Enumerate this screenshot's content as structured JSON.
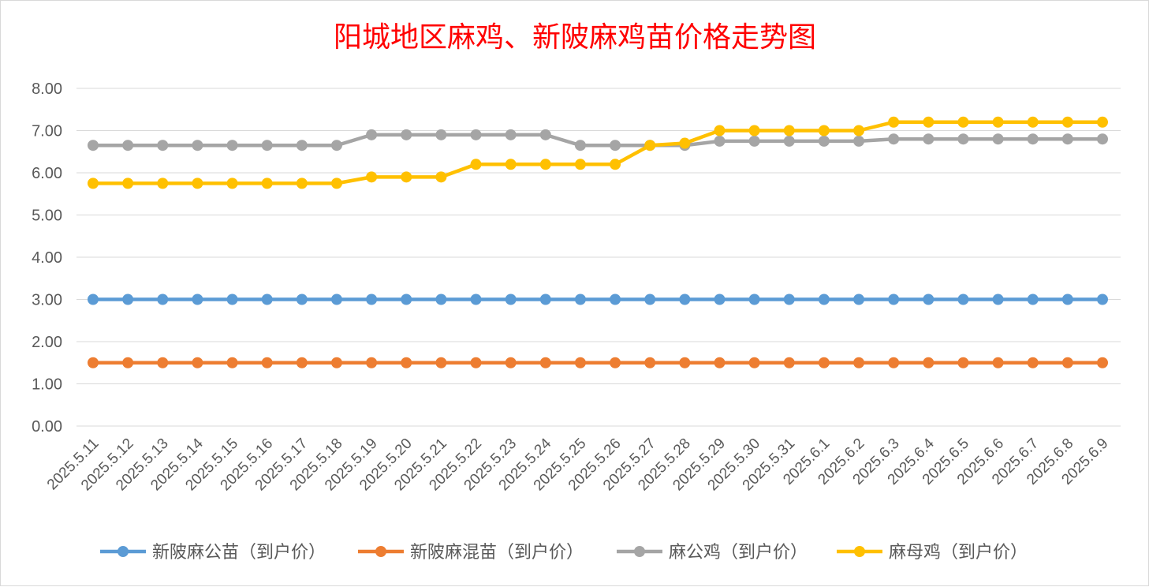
{
  "chart_data": {
    "type": "line",
    "title": "阳城地区麻鸡、新陂麻鸡苗价格走势图",
    "xlabel": "",
    "ylabel": "",
    "ylim": [
      0,
      8
    ],
    "y_ticks": [
      "0.00",
      "1.00",
      "2.00",
      "3.00",
      "4.00",
      "5.00",
      "6.00",
      "7.00",
      "8.00"
    ],
    "grid": true,
    "legend_position": "bottom",
    "categories": [
      "2025.5.11",
      "2025.5.12",
      "2025.5.13",
      "2025.5.14",
      "2025.5.15",
      "2025.5.16",
      "2025.5.17",
      "2025.5.18",
      "2025.5.19",
      "2025.5.20",
      "2025.5.21",
      "2025.5.22",
      "2025.5.23",
      "2025.5.24",
      "2025.5.25",
      "2025.5.26",
      "2025.5.27",
      "2025.5.28",
      "2025.5.29",
      "2025.5.30",
      "2025.5.31",
      "2025.6.1",
      "2025.6.2",
      "2025.6.3",
      "2025.6.4",
      "2025.6.5",
      "2025.6.6",
      "2025.6.7",
      "2025.6.8",
      "2025.6.9"
    ],
    "series": [
      {
        "name": "新陂麻公苗（到户价）",
        "color": "#5b9bd5",
        "values": [
          3.0,
          3.0,
          3.0,
          3.0,
          3.0,
          3.0,
          3.0,
          3.0,
          3.0,
          3.0,
          3.0,
          3.0,
          3.0,
          3.0,
          3.0,
          3.0,
          3.0,
          3.0,
          3.0,
          3.0,
          3.0,
          3.0,
          3.0,
          3.0,
          3.0,
          3.0,
          3.0,
          3.0,
          3.0,
          3.0
        ]
      },
      {
        "name": "新陂麻混苗（到户价）",
        "color": "#ed7d31",
        "values": [
          1.5,
          1.5,
          1.5,
          1.5,
          1.5,
          1.5,
          1.5,
          1.5,
          1.5,
          1.5,
          1.5,
          1.5,
          1.5,
          1.5,
          1.5,
          1.5,
          1.5,
          1.5,
          1.5,
          1.5,
          1.5,
          1.5,
          1.5,
          1.5,
          1.5,
          1.5,
          1.5,
          1.5,
          1.5,
          1.5
        ]
      },
      {
        "name": "麻公鸡（到户价）",
        "color": "#a5a5a5",
        "values": [
          6.65,
          6.65,
          6.65,
          6.65,
          6.65,
          6.65,
          6.65,
          6.65,
          6.9,
          6.9,
          6.9,
          6.9,
          6.9,
          6.9,
          6.65,
          6.65,
          6.65,
          6.65,
          6.75,
          6.75,
          6.75,
          6.75,
          6.75,
          6.8,
          6.8,
          6.8,
          6.8,
          6.8,
          6.8,
          6.8
        ]
      },
      {
        "name": "麻母鸡（到户价）",
        "color": "#ffc000",
        "values": [
          5.75,
          5.75,
          5.75,
          5.75,
          5.75,
          5.75,
          5.75,
          5.75,
          5.9,
          5.9,
          5.9,
          6.2,
          6.2,
          6.2,
          6.2,
          6.2,
          6.65,
          6.7,
          7.0,
          7.0,
          7.0,
          7.0,
          7.0,
          7.2,
          7.2,
          7.2,
          7.2,
          7.2,
          7.2,
          7.2
        ]
      }
    ]
  }
}
